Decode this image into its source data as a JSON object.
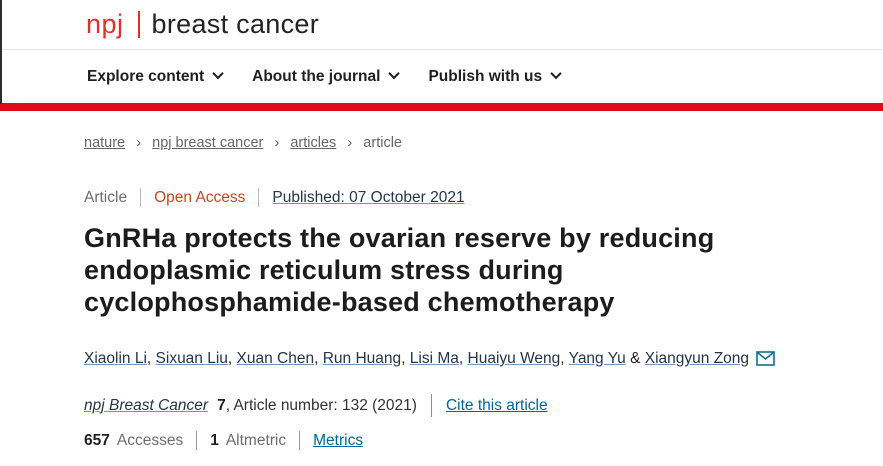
{
  "logo": {
    "brand": "npj",
    "journal": "breast cancer"
  },
  "nav": {
    "items": [
      {
        "label": "Explore content"
      },
      {
        "label": "About the journal"
      },
      {
        "label": "Publish with us"
      }
    ]
  },
  "breadcrumb": {
    "separator": "›",
    "items": [
      {
        "label": "nature"
      },
      {
        "label": "npj breast cancer"
      },
      {
        "label": "articles"
      },
      {
        "label": "article"
      }
    ]
  },
  "article": {
    "type_label": "Article",
    "access_label": "Open Access",
    "published_label": "Published: 07 October 2021",
    "title": "GnRHa protects the ovarian reserve by reducing endoplasmic reticulum stress during cyclophosphamide-based chemotherapy",
    "title_lines": [
      "GnRHa protects the ovarian reserve by reducing",
      "endoplasmic reticulum stress during",
      "cyclophosphamide-based chemotherapy"
    ],
    "authors": [
      "Xiaolin Li",
      "Sixuan Liu",
      "Xuan Chen",
      "Run Huang",
      "Lisi Ma",
      "Huaiyu Weng",
      "Yang Yu",
      "Xiangyun Zong"
    ],
    "author_separator": ", ",
    "author_ampersand": " & ",
    "email_icon": "envelope-icon"
  },
  "citation": {
    "journal": "npj Breast Cancer",
    "volume": "7",
    "article_number_text": ", Article number: 132 (2021)",
    "cite_link": "Cite this article"
  },
  "metrics": {
    "accesses_count": "657",
    "accesses_label": "Accesses",
    "altmetric_count": "1",
    "altmetric_label": "Altmetric",
    "metrics_link": "Metrics"
  },
  "colors": {
    "brand_red": "#e0312e",
    "banner_red": "#dd0c18",
    "open_access_orange": "#c6471f",
    "teal_link": "#006699",
    "dark_link": "#253648"
  }
}
